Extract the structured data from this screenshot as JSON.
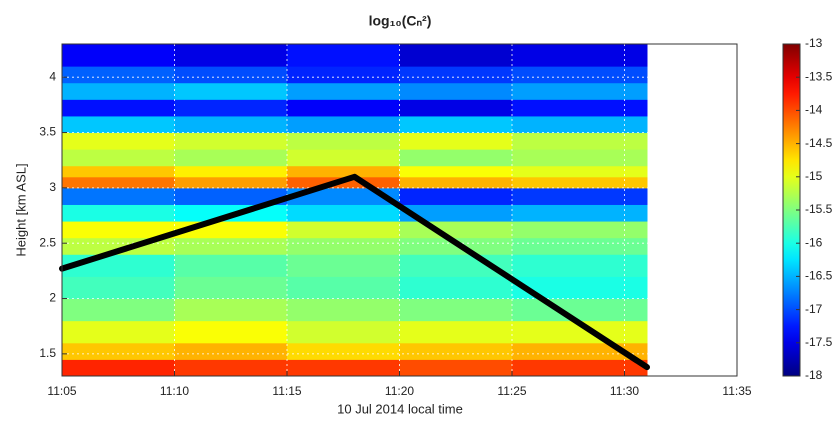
{
  "chart_data": {
    "type": "heatmap",
    "title": "log₁₀(Cₙ²)",
    "xlabel": "10 Jul 2014 local time",
    "ylabel": "Height [km ASL]",
    "colormap": "jet",
    "grid": true,
    "xlim": [
      "11:05",
      "11:35"
    ],
    "xticks": [
      "11:05",
      "11:10",
      "11:15",
      "11:20",
      "11:25",
      "11:30",
      "11:35"
    ],
    "ylim": [
      1.3,
      4.3
    ],
    "yticks": [
      1.5,
      2,
      2.5,
      3,
      3.5,
      4
    ],
    "x_edges": [
      "11:05",
      "11:10",
      "11:15",
      "11:20",
      "11:25",
      "11:31"
    ],
    "y_edges": [
      1.3,
      1.45,
      1.6,
      1.8,
      2.0,
      2.2,
      2.4,
      2.55,
      2.7,
      2.85,
      3.0,
      3.1,
      3.2,
      3.35,
      3.5,
      3.65,
      3.8,
      3.95,
      4.1,
      4.3
    ],
    "z": [
      [
        -13.8,
        -13.9,
        -13.9,
        -14.0,
        -13.9
      ],
      [
        -14.6,
        -14.5,
        -14.7,
        -14.6,
        -14.5
      ],
      [
        -15.0,
        -14.9,
        -15.1,
        -15.0,
        -15.0
      ],
      [
        -15.5,
        -15.3,
        -15.4,
        -15.5,
        -15.6
      ],
      [
        -15.8,
        -15.6,
        -15.7,
        -15.9,
        -16.0
      ],
      [
        -15.9,
        -15.7,
        -15.6,
        -15.8,
        -15.9
      ],
      [
        -15.2,
        -15.3,
        -15.4,
        -15.5,
        -15.6
      ],
      [
        -14.9,
        -14.9,
        -15.1,
        -15.3,
        -15.4
      ],
      [
        -16.0,
        -16.1,
        -16.3,
        -16.6,
        -16.5
      ],
      [
        -16.8,
        -16.9,
        -16.7,
        -17.2,
        -17.1
      ],
      [
        -14.2,
        -14.4,
        -14.1,
        -14.5,
        -14.6
      ],
      [
        -14.6,
        -14.8,
        -14.5,
        -14.9,
        -15.0
      ],
      [
        -15.2,
        -15.3,
        -15.1,
        -15.4,
        -15.3
      ],
      [
        -15.0,
        -15.1,
        -15.2,
        -15.0,
        -15.2
      ],
      [
        -16.4,
        -16.5,
        -16.6,
        -16.4,
        -16.5
      ],
      [
        -17.3,
        -17.2,
        -17.4,
        -17.5,
        -17.3
      ],
      [
        -16.5,
        -16.4,
        -16.6,
        -16.7,
        -16.6
      ],
      [
        -16.9,
        -17.0,
        -17.2,
        -17.1,
        -17.0
      ],
      [
        -17.4,
        -17.5,
        -17.3,
        -17.6,
        -17.5
      ]
    ],
    "series": [
      {
        "x": [
          "11:05",
          "11:18",
          "11:31"
        ],
        "values": [
          2.27,
          3.1,
          1.38
        ],
        "color": "#000000"
      }
    ],
    "colorbar": {
      "lim": [
        -18,
        -13
      ],
      "ticks": [
        -13,
        -13.5,
        -14,
        -14.5,
        -15,
        -15.5,
        -16,
        -16.5,
        -17,
        -17.5,
        -18
      ]
    }
  }
}
